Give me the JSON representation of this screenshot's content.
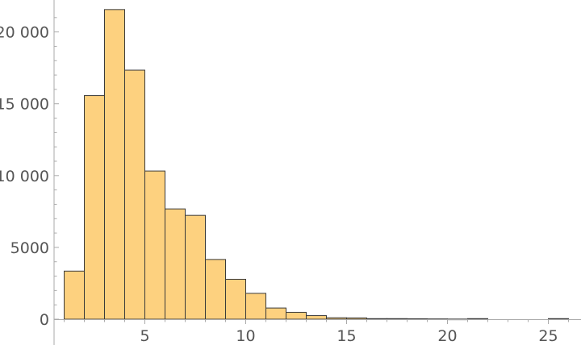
{
  "chart_data": {
    "type": "bar",
    "title": "",
    "xlabel": "",
    "ylabel": "",
    "xlim": [
      0.5,
      26.5
    ],
    "ylim": [
      0,
      22000
    ],
    "x_ticks": [
      5,
      10,
      15,
      20,
      25
    ],
    "y_ticks": [
      0,
      5000,
      10000,
      15000,
      20000
    ],
    "x_tick_labels": [
      "5",
      "10",
      "15",
      "20",
      "25"
    ],
    "y_tick_labels": [
      "0",
      "5000",
      "10 000",
      "15 000",
      "20 000"
    ],
    "bin_width": 1,
    "bin_starts": [
      1,
      2,
      3,
      4,
      5,
      6,
      7,
      8,
      9,
      10,
      11,
      12,
      13,
      14,
      15,
      16,
      17,
      18,
      19,
      20,
      21,
      22,
      23,
      24,
      25
    ],
    "values": [
      3350,
      15570,
      21560,
      17340,
      10320,
      7680,
      7230,
      4160,
      2780,
      1800,
      780,
      480,
      250,
      100,
      90,
      40,
      40,
      30,
      20,
      10,
      40,
      0,
      0,
      0,
      40
    ],
    "bar_color": "#fdd17f",
    "bar_stroke": "#3a3a3a",
    "axis_color": "#aaaaaa",
    "grid": false
  }
}
